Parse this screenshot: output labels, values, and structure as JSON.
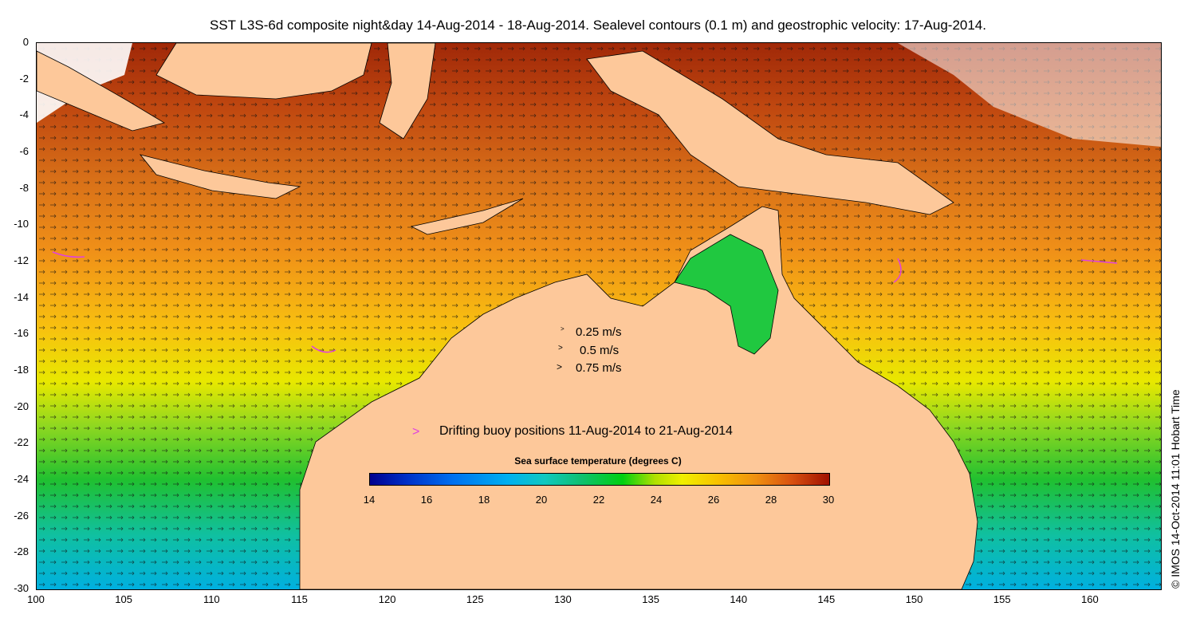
{
  "title": "SST L3S-6d composite night&day 14-Aug-2014 - 18-Aug-2014. Sealevel contours (0.1 m) and geostrophic velocity: 17-Aug-2014.",
  "axes": {
    "y_ticks": [
      "0",
      "-2",
      "-4",
      "-6",
      "-8",
      "-10",
      "-12",
      "-14",
      "-16",
      "-18",
      "-20",
      "-22",
      "-24",
      "-26",
      "-28",
      "-30"
    ],
    "x_ticks": [
      "100",
      "105",
      "110",
      "115",
      "120",
      "125",
      "130",
      "135",
      "140",
      "145",
      "150",
      "155",
      "160"
    ],
    "lat_range": [
      -30,
      0
    ],
    "lon_range": [
      100,
      164
    ]
  },
  "velocity_legend": [
    {
      "symbol": ">",
      "label": "0.25 m/s"
    },
    {
      "symbol": ">",
      "label": "0.5 m/s"
    },
    {
      "symbol": ">",
      "label": "0.75 m/s"
    }
  ],
  "buoy_legend": {
    "symbol": ">",
    "label": "Drifting buoy positions 11-Aug-2014 to 21-Aug-2014"
  },
  "colorbar": {
    "title": "Sea surface temperature (degrees C)",
    "ticks": [
      "14",
      "16",
      "18",
      "20",
      "22",
      "24",
      "26",
      "28",
      "30"
    ],
    "range": [
      14,
      30
    ]
  },
  "copyright": "© IMOS 14-Oct-2014 11:01 Hobart Time",
  "colors": {
    "land": "#fdc89a",
    "buoy": "#e040e0"
  }
}
